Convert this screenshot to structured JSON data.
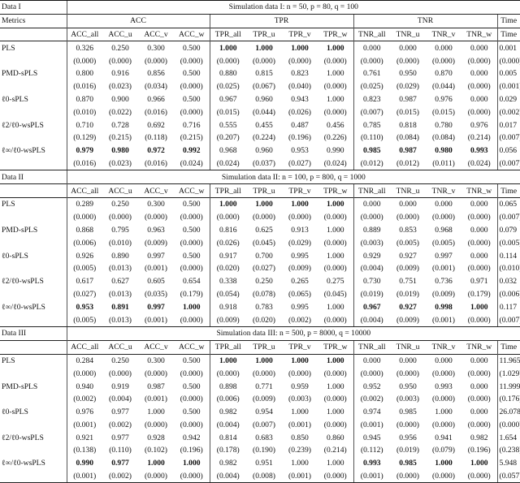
{
  "groups": [
    "ACC",
    "TPR",
    "TNR"
  ],
  "time_label": "Time",
  "sections": [
    {
      "label": "Data I",
      "title": "Simulation data I: n = 50, p = 80, q = 100",
      "header": [
        "Metrics",
        "ACC",
        "TPR",
        "TNR"
      ],
      "columns": [
        "ACC_all",
        "ACC_u",
        "ACC_v",
        "ACC_w",
        "TPR_all",
        "TPR_u",
        "TPR_v",
        "TPR_w",
        "TNR_all",
        "TNR_u",
        "TNR_v",
        "TNR_w",
        "Time"
      ],
      "rows": [
        {
          "method": "PLS",
          "values": [
            "0.326",
            "0.250",
            "0.300",
            "0.500",
            "1.000",
            "1.000",
            "1.000",
            "1.000",
            "0.000",
            "0.000",
            "0.000",
            "0.000",
            "0.001"
          ],
          "sds": [
            "(0.000)",
            "(0.000)",
            "(0.000)",
            "(0.000)",
            "(0.000)",
            "(0.000)",
            "(0.000)",
            "(0.000)",
            "(0.000)",
            "(0.000)",
            "(0.000)",
            "(0.000)",
            "(0.000)"
          ],
          "bold": [
            4,
            5,
            6,
            7
          ]
        },
        {
          "method": "PMD-sPLS",
          "values": [
            "0.800",
            "0.916",
            "0.856",
            "0.500",
            "0.880",
            "0.815",
            "0.823",
            "1.000",
            "0.761",
            "0.950",
            "0.870",
            "0.000",
            "0.005"
          ],
          "sds": [
            "(0.016)",
            "(0.023)",
            "(0.034)",
            "(0.000)",
            "(0.025)",
            "(0.067)",
            "(0.040)",
            "(0.000)",
            "(0.025)",
            "(0.029)",
            "(0.044)",
            "(0.000)",
            "(0.001)"
          ],
          "bold": []
        },
        {
          "method": "ℓ0-sPLS",
          "values": [
            "0.870",
            "0.900",
            "0.966",
            "0.500",
            "0.967",
            "0.960",
            "0.943",
            "1.000",
            "0.823",
            "0.987",
            "0.976",
            "0.000",
            "0.029"
          ],
          "sds": [
            "(0.010)",
            "(0.022)",
            "(0.016)",
            "(0.000)",
            "(0.015)",
            "(0.044)",
            "(0.026)",
            "(0.000)",
            "(0.007)",
            "(0.015)",
            "(0.015)",
            "(0.000)",
            "(0.002)"
          ],
          "bold": []
        },
        {
          "method": "ℓ2/ℓ0-wsPLS",
          "values": [
            "0.710",
            "0.728",
            "0.692",
            "0.716",
            "0.555",
            "0.455",
            "0.487",
            "0.456",
            "0.785",
            "0.818",
            "0.780",
            "0.976",
            "0.017"
          ],
          "sds": [
            "(0.129)",
            "(0.215)",
            "(0.118)",
            "(0.215)",
            "(0.207)",
            "(0.224)",
            "(0.196)",
            "(0.226)",
            "(0.110)",
            "(0.084)",
            "(0.084)",
            "(0.214)",
            "(0.007)"
          ],
          "bold": []
        },
        {
          "method": "ℓ∞/ℓ0-wsPLS",
          "values": [
            "0.979",
            "0.980",
            "0.972",
            "0.992",
            "0.968",
            "0.960",
            "0.953",
            "0.990",
            "0.985",
            "0.987",
            "0.980",
            "0.993",
            "0.056"
          ],
          "sds": [
            "(0.016)",
            "(0.023)",
            "(0.016)",
            "(0.024)",
            "(0.024)",
            "(0.037)",
            "(0.027)",
            "(0.024)",
            "(0.012)",
            "(0.012)",
            "(0.011)",
            "(0.024)",
            "(0.007)"
          ],
          "bold": [
            0,
            1,
            2,
            3,
            8,
            9,
            10,
            11
          ]
        }
      ]
    },
    {
      "label": "Data II",
      "title": "Simulation data II: n = 100, p = 800, q = 1000",
      "columns": [
        "ACC_all",
        "ACC_u",
        "ACC_v",
        "ACC_w",
        "TPR_all",
        "TPR_u",
        "TPR_v",
        "TPR_w",
        "TNR_all",
        "TNR_u",
        "TNR_v",
        "TNR_w",
        "Time"
      ],
      "rows": [
        {
          "method": "PLS",
          "values": [
            "0.289",
            "0.250",
            "0.300",
            "0.500",
            "1.000",
            "1.000",
            "1.000",
            "1.000",
            "0.000",
            "0.000",
            "0.000",
            "0.000",
            "0.065"
          ],
          "sds": [
            "(0.000)",
            "(0.000)",
            "(0.000)",
            "(0.000)",
            "(0.000)",
            "(0.000)",
            "(0.000)",
            "(0.000)",
            "(0.000)",
            "(0.000)",
            "(0.000)",
            "(0.000)",
            "(0.007)"
          ],
          "bold": [
            4,
            5,
            6,
            7
          ]
        },
        {
          "method": "PMD-sPLS",
          "values": [
            "0.868",
            "0.795",
            "0.963",
            "0.500",
            "0.816",
            "0.625",
            "0.913",
            "1.000",
            "0.889",
            "0.853",
            "0.968",
            "0.000",
            "0.079"
          ],
          "sds": [
            "(0.006)",
            "(0.010)",
            "(0.009)",
            "(0.000)",
            "(0.026)",
            "(0.045)",
            "(0.029)",
            "(0.000)",
            "(0.003)",
            "(0.005)",
            "(0.005)",
            "(0.000)",
            "(0.005)"
          ],
          "bold": []
        },
        {
          "method": "ℓ0-sPLS",
          "values": [
            "0.926",
            "0.890",
            "0.997",
            "0.500",
            "0.917",
            "0.700",
            "0.995",
            "1.000",
            "0.929",
            "0.927",
            "0.997",
            "0.000",
            "0.114"
          ],
          "sds": [
            "(0.005)",
            "(0.013)",
            "(0.001)",
            "(0.000)",
            "(0.020)",
            "(0.027)",
            "(0.009)",
            "(0.000)",
            "(0.004)",
            "(0.009)",
            "(0.001)",
            "(0.000)",
            "(0.010)"
          ],
          "bold": []
        },
        {
          "method": "ℓ2/ℓ0-wsPLS",
          "values": [
            "0.617",
            "0.627",
            "0.605",
            "0.654",
            "0.338",
            "0.250",
            "0.265",
            "0.275",
            "0.730",
            "0.751",
            "0.736",
            "0.971",
            "0.032"
          ],
          "sds": [
            "(0.027)",
            "(0.013)",
            "(0.035)",
            "(0.179)",
            "(0.054)",
            "(0.078)",
            "(0.065)",
            "(0.045)",
            "(0.019)",
            "(0.019)",
            "(0.009)",
            "(0.179)",
            "(0.006)"
          ],
          "bold": []
        },
        {
          "method": "ℓ∞/ℓ0-wsPLS",
          "values": [
            "0.953",
            "0.891",
            "0.997",
            "1.000",
            "0.918",
            "0.783",
            "0.995",
            "1.000",
            "0.967",
            "0.927",
            "0.998",
            "1.000",
            "0.117"
          ],
          "sds": [
            "(0.005)",
            "(0.013)",
            "(0.001)",
            "(0.000)",
            "(0.009)",
            "(0.020)",
            "(0.002)",
            "(0.000)",
            "(0.004)",
            "(0.009)",
            "(0.001)",
            "(0.000)",
            "(0.007)"
          ],
          "bold": [
            0,
            1,
            2,
            3,
            8,
            9,
            10,
            11
          ]
        }
      ]
    },
    {
      "label": "Data III",
      "title": "Simulation data III: n = 500, p = 8000, q = 10000",
      "columns": [
        "ACC_all",
        "ACC_u",
        "ACC_v",
        "ACC_w",
        "TPR_all",
        "TPR_u",
        "TPR_v",
        "TPR_w",
        "TNR_all",
        "TNR_u",
        "TNR_v",
        "TNR_w",
        "Time"
      ],
      "rows": [
        {
          "method": "PLS",
          "values": [
            "0.284",
            "0.250",
            "0.300",
            "0.500",
            "1.000",
            "1.000",
            "1.000",
            "1.000",
            "0.000",
            "0.000",
            "0.000",
            "0.000",
            "11.965"
          ],
          "sds": [
            "(0.000)",
            "(0.000)",
            "(0.000)",
            "(0.000)",
            "(0.000)",
            "(0.000)",
            "(0.000)",
            "(0.000)",
            "(0.000)",
            "(0.000)",
            "(0.000)",
            "(0.000)",
            "(1.029)"
          ],
          "bold": [
            4,
            5,
            6,
            7
          ]
        },
        {
          "method": "PMD-sPLS",
          "values": [
            "0.940",
            "0.919",
            "0.987",
            "0.500",
            "0.898",
            "0.771",
            "0.959",
            "1.000",
            "0.952",
            "0.950",
            "0.993",
            "0.000",
            "11.999"
          ],
          "sds": [
            "(0.002)",
            "(0.004)",
            "(0.001)",
            "(0.000)",
            "(0.006)",
            "(0.009)",
            "(0.003)",
            "(0.000)",
            "(0.002)",
            "(0.003)",
            "(0.000)",
            "(0.000)",
            "(0.176)"
          ],
          "bold": []
        },
        {
          "method": "ℓ0-sPLS",
          "values": [
            "0.976",
            "0.977",
            "1.000",
            "0.500",
            "0.982",
            "0.954",
            "1.000",
            "1.000",
            "0.974",
            "0.985",
            "1.000",
            "0.000",
            "26.078"
          ],
          "sds": [
            "(0.001)",
            "(0.002)",
            "(0.000)",
            "(0.000)",
            "(0.004)",
            "(0.007)",
            "(0.001)",
            "(0.000)",
            "(0.001)",
            "(0.000)",
            "(0.000)",
            "(0.000)",
            "(0.000)"
          ],
          "bold": []
        },
        {
          "method": "ℓ2/ℓ0-wsPLS",
          "values": [
            "0.921",
            "0.977",
            "0.928",
            "0.942",
            "0.814",
            "0.683",
            "0.850",
            "0.860",
            "0.945",
            "0.956",
            "0.941",
            "0.982",
            "1.654"
          ],
          "sds": [
            "(0.138)",
            "(0.110)",
            "(0.102)",
            "(0.196)",
            "(0.178)",
            "(0.190)",
            "(0.239)",
            "(0.214)",
            "(0.112)",
            "(0.019)",
            "(0.079)",
            "(0.196)",
            "(0.238)"
          ],
          "bold": []
        },
        {
          "method": "ℓ∞/ℓ0-wsPLS",
          "values": [
            "0.990",
            "0.977",
            "1.000",
            "1.000",
            "0.982",
            "0.951",
            "1.000",
            "1.000",
            "0.993",
            "0.985",
            "1.000",
            "1.000",
            "5.948"
          ],
          "sds": [
            "(0.001)",
            "(0.002)",
            "(0.000)",
            "(0.000)",
            "(0.004)",
            "(0.008)",
            "(0.001)",
            "(0.000)",
            "(0.001)",
            "(0.000)",
            "(0.000)",
            "(0.000)",
            "(0.057)"
          ],
          "bold": [
            0,
            1,
            2,
            3,
            8,
            9,
            10,
            11
          ]
        }
      ]
    }
  ]
}
